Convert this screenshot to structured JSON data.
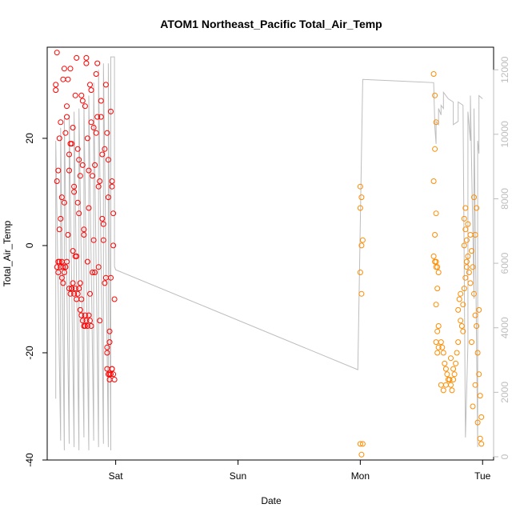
{
  "chart_data": {
    "type": "scatter",
    "title": "ATOM1 Northeast_Pacific Total_Air_Temp",
    "xlabel": "Date",
    "ylabel": "Total_Air_Temp",
    "y2label": "",
    "x_ticks": [
      {
        "label": "Sat",
        "value": 1.0
      },
      {
        "label": "Sun",
        "value": 2.0
      },
      {
        "label": "Mon",
        "value": 3.0
      },
      {
        "label": "Tue",
        "value": 4.0
      }
    ],
    "y_ticks": [
      -40,
      -20,
      0,
      20
    ],
    "y2_ticks": [
      0,
      2000,
      4000,
      6000,
      8000,
      10000,
      12000
    ],
    "xlim": [
      0.44,
      4.09
    ],
    "ylim": [
      -40.0,
      37.0
    ],
    "y2lim": [
      -100,
      12700
    ],
    "grid": false,
    "colors": {
      "series1": "#ff0000",
      "series2": "#ff8c00",
      "altitude": "#bdbdbd",
      "frame": "#000000"
    },
    "series": [
      {
        "color": "#ff0000",
        "x": [
          0.51,
          0.52,
          0.53,
          0.54,
          0.55,
          0.56,
          0.57,
          0.58,
          0.59,
          0.6,
          0.61,
          0.62,
          0.63,
          0.64,
          0.65,
          0.66,
          0.67,
          0.68,
          0.69,
          0.7,
          0.71,
          0.72,
          0.73,
          0.74,
          0.75,
          0.76,
          0.77,
          0.78,
          0.79,
          0.8,
          0.81,
          0.82,
          0.83,
          0.84,
          0.85,
          0.86,
          0.87,
          0.88,
          0.89,
          0.9,
          0.91,
          0.92,
          0.93,
          0.94,
          0.95,
          0.96,
          0.97,
          0.98,
          0.99,
          0.52,
          0.55,
          0.58,
          0.61,
          0.64,
          0.67,
          0.7,
          0.73,
          0.76,
          0.79,
          0.82,
          0.85,
          0.88,
          0.91,
          0.94,
          0.97,
          0.53,
          0.56,
          0.59,
          0.62,
          0.65,
          0.68,
          0.71,
          0.74,
          0.77,
          0.8,
          0.83,
          0.86,
          0.89,
          0.92,
          0.95,
          0.98,
          0.51,
          0.54,
          0.57,
          0.6,
          0.63,
          0.66,
          0.69,
          0.72,
          0.75,
          0.78,
          0.81,
          0.84,
          0.87,
          0.9,
          0.93,
          0.96,
          0.52,
          0.53,
          0.54,
          0.55,
          0.56,
          0.57,
          0.58,
          0.59,
          0.6,
          0.62,
          0.63,
          0.64,
          0.65,
          0.66,
          0.67,
          0.68,
          0.69,
          0.7,
          0.71,
          0.72,
          0.73,
          0.74,
          0.75,
          0.76,
          0.77,
          0.78,
          0.79,
          0.8,
          0.93,
          0.94,
          0.95,
          0.96,
          0.97,
          0.98,
          0.99,
          0.95,
          0.97,
          0.93
        ],
        "y": [
          30,
          12,
          -3,
          20,
          5,
          -6,
          31,
          8,
          -4,
          26,
          2,
          14,
          33,
          -8,
          22,
          10,
          -2,
          35,
          18,
          6,
          -12,
          28,
          15,
          3,
          -15,
          34,
          20,
          7,
          -9,
          29,
          13,
          1,
          -5,
          32,
          24,
          11,
          -14,
          27,
          17,
          4,
          -7,
          30,
          21,
          9,
          -16,
          25,
          12,
          0,
          -10,
          36,
          23,
          33,
          31,
          19,
          28,
          16,
          27,
          35,
          30,
          22,
          34,
          24,
          18,
          16,
          11,
          14,
          9,
          21,
          17,
          -1,
          -2,
          13,
          2,
          -3,
          23,
          15,
          -4,
          5,
          -6,
          -18,
          6,
          29,
          3,
          -7,
          24,
          19,
          11,
          8,
          -10,
          26,
          14,
          -5,
          21,
          12,
          1,
          -19,
          -6,
          -4,
          -5,
          -3,
          -4,
          -3,
          -4,
          -5,
          -4,
          -3,
          -8,
          -9,
          -8,
          -7,
          -9,
          -8,
          -10,
          -9,
          -8,
          -7,
          -13,
          -14,
          -15,
          -13,
          -14,
          -15,
          -13,
          -14,
          -15,
          -23,
          -24,
          -25,
          -24,
          -23,
          -24,
          -25,
          -24,
          -23,
          -20
        ]
      },
      {
        "color": "#ff8c00",
        "x": [
          3.0,
          3.01,
          3.0,
          3.02,
          3.01,
          3.0,
          3.01,
          3.0,
          3.02,
          3.01,
          3.6,
          3.61,
          3.62,
          3.61,
          3.6,
          3.62,
          3.61,
          3.6,
          3.61,
          3.62,
          3.62,
          3.63,
          3.64,
          3.63,
          3.62,
          3.64,
          3.63,
          3.62,
          3.64,
          3.63,
          3.66,
          3.67,
          3.68,
          3.69,
          3.7,
          3.71,
          3.72,
          3.66,
          3.68,
          3.7,
          3.73,
          3.74,
          3.75,
          3.76,
          3.77,
          3.78,
          3.79,
          3.8,
          3.74,
          3.76,
          3.8,
          3.81,
          3.82,
          3.83,
          3.84,
          3.85,
          3.86,
          3.87,
          3.82,
          3.84,
          3.85,
          3.86,
          3.87,
          3.88,
          3.89,
          3.9,
          3.86,
          3.88,
          3.85,
          3.87,
          3.9,
          3.91,
          3.92,
          3.93,
          3.94,
          3.95,
          3.96,
          3.97,
          3.98,
          3.99,
          3.92,
          3.94,
          3.96,
          3.98,
          3.93,
          3.95,
          3.97,
          3.91,
          3.99,
          3.94
        ],
        "y": [
          11,
          9,
          7,
          1,
          0,
          -5,
          -9,
          -37,
          -37,
          -39,
          32,
          28,
          23,
          18,
          12,
          6,
          2,
          -2,
          -3,
          -4,
          -3,
          -4,
          -5,
          -8,
          -11,
          -15,
          -16,
          -18,
          -19,
          -20,
          -18,
          -19,
          -20,
          -22,
          -23,
          -24,
          -25,
          -26,
          -27,
          -26,
          -25,
          -26,
          -27,
          -25,
          -24,
          -22,
          -20,
          -18,
          -21,
          -23,
          -12,
          -10,
          -14,
          -15,
          -16,
          -8,
          -6,
          -4,
          -9,
          -11,
          5,
          3,
          1,
          -2,
          -5,
          -7,
          7,
          4,
          0,
          -3,
          2,
          -1,
          -4,
          -9,
          -13,
          -15,
          -20,
          -24,
          -28,
          -32,
          -30,
          -26,
          -33,
          -36,
          9,
          7,
          -12,
          -18,
          -37,
          2
        ]
      }
    ],
    "altitude_trace": {
      "x": [
        0.51,
        0.51,
        0.55,
        0.55,
        0.58,
        0.58,
        0.62,
        0.62,
        0.66,
        0.66,
        0.7,
        0.7,
        0.74,
        0.74,
        0.78,
        0.78,
        0.82,
        0.82,
        0.86,
        0.86,
        0.9,
        0.9,
        0.94,
        0.94,
        0.96,
        0.96,
        0.99,
        0.99,
        1.0,
        2.98,
        3.02,
        3.02,
        3.6,
        3.61,
        3.62,
        3.62,
        3.64,
        3.64,
        3.66,
        3.66,
        3.68,
        3.68,
        3.72,
        3.72,
        3.76,
        3.76,
        3.8,
        3.8,
        3.84,
        3.86,
        3.88,
        3.88,
        3.9,
        3.9,
        3.93,
        3.93,
        3.96,
        3.96,
        3.97,
        3.97,
        4.0,
        4.0
      ],
      "y": [
        1800,
        9800,
        500,
        10200,
        200,
        10500,
        400,
        10600,
        300,
        10700,
        200,
        10800,
        600,
        11000,
        200,
        11200,
        500,
        11600,
        300,
        12000,
        400,
        12200,
        300,
        12200,
        200,
        12400,
        12400,
        5900,
        5800,
        2700,
        11700,
        11700,
        11600,
        10200,
        9700,
        10400,
        10300,
        10800,
        10600,
        10900,
        10800,
        11300,
        11100,
        11100,
        11000,
        10300,
        10400,
        11000,
        10900,
        600,
        3500,
        10700,
        9800,
        11200,
        4900,
        10800,
        300,
        9800,
        9400,
        11200,
        11100,
        11100
      ]
    }
  }
}
